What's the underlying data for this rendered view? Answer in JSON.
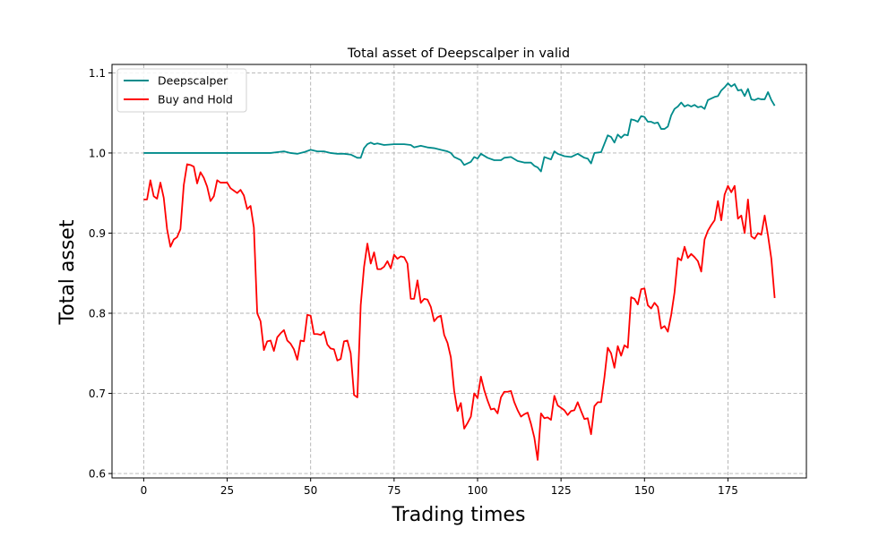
{
  "chart_data": {
    "type": "line",
    "title": "Total asset of Deepscalper in valid",
    "xlabel": "Trading times",
    "ylabel": "Total asset",
    "xlim": [
      -9.5,
      198.5
    ],
    "ylim": [
      0.5945,
      1.1105
    ],
    "xticks": [
      0,
      25,
      50,
      75,
      100,
      125,
      150,
      175
    ],
    "yticks": [
      0.6,
      0.7,
      0.8,
      0.9,
      1.0,
      1.1
    ],
    "ytick_labels": [
      "0.6",
      "0.7",
      "0.8",
      "0.9",
      "1.0",
      "1.1"
    ],
    "grid": true,
    "legend_position": "top-left",
    "series": [
      {
        "name": "Deepscalper",
        "color": "#008b8b",
        "points": [
          [
            0,
            1.0
          ],
          [
            38,
            1.0
          ],
          [
            40,
            1.001
          ],
          [
            42,
            1.002
          ],
          [
            44,
            1.0
          ],
          [
            46,
            0.999
          ],
          [
            48,
            1.001
          ],
          [
            50,
            1.004
          ],
          [
            52,
            1.002
          ],
          [
            54,
            1.002
          ],
          [
            56,
            1.0
          ],
          [
            58,
            0.999
          ],
          [
            60,
            0.999
          ],
          [
            62,
            0.998
          ],
          [
            64,
            0.994
          ],
          [
            65,
            0.994
          ],
          [
            66,
            1.006
          ],
          [
            67,
            1.011
          ],
          [
            68,
            1.013
          ],
          [
            69,
            1.011
          ],
          [
            70,
            1.012
          ],
          [
            72,
            1.01
          ],
          [
            75,
            1.011
          ],
          [
            78,
            1.011
          ],
          [
            80,
            1.01
          ],
          [
            81,
            1.007
          ],
          [
            83,
            1.009
          ],
          [
            85,
            1.007
          ],
          [
            87,
            1.006
          ],
          [
            89,
            1.004
          ],
          [
            91,
            1.002
          ],
          [
            92,
            1.0
          ],
          [
            93,
            0.995
          ],
          [
            95,
            0.991
          ],
          [
            96,
            0.985
          ],
          [
            98,
            0.989
          ],
          [
            99,
            0.995
          ],
          [
            100,
            0.993
          ],
          [
            101,
            0.999
          ],
          [
            103,
            0.994
          ],
          [
            105,
            0.991
          ],
          [
            107,
            0.991
          ],
          [
            108,
            0.994
          ],
          [
            110,
            0.995
          ],
          [
            112,
            0.99
          ],
          [
            114,
            0.988
          ],
          [
            116,
            0.988
          ],
          [
            117,
            0.984
          ],
          [
            118,
            0.982
          ],
          [
            119,
            0.977
          ],
          [
            120,
            0.995
          ],
          [
            122,
            0.992
          ],
          [
            123,
            1.002
          ],
          [
            124,
            0.999
          ],
          [
            126,
            0.996
          ],
          [
            128,
            0.995
          ],
          [
            130,
            0.999
          ],
          [
            132,
            0.994
          ],
          [
            133,
            0.993
          ],
          [
            134,
            0.987
          ],
          [
            135,
            1.0
          ],
          [
            137,
            1.001
          ],
          [
            139,
            1.022
          ],
          [
            140,
            1.02
          ],
          [
            141,
            1.013
          ],
          [
            142,
            1.023
          ],
          [
            143,
            1.019
          ],
          [
            144,
            1.023
          ],
          [
            145,
            1.022
          ],
          [
            146,
            1.042
          ],
          [
            147,
            1.041
          ],
          [
            148,
            1.039
          ],
          [
            149,
            1.046
          ],
          [
            150,
            1.045
          ],
          [
            151,
            1.039
          ],
          [
            152,
            1.039
          ],
          [
            153,
            1.037
          ],
          [
            154,
            1.038
          ],
          [
            155,
            1.03
          ],
          [
            156,
            1.03
          ],
          [
            157,
            1.033
          ],
          [
            158,
            1.047
          ],
          [
            159,
            1.055
          ],
          [
            160,
            1.058
          ],
          [
            161,
            1.063
          ],
          [
            162,
            1.058
          ],
          [
            163,
            1.06
          ],
          [
            164,
            1.058
          ],
          [
            165,
            1.06
          ],
          [
            166,
            1.057
          ],
          [
            167,
            1.058
          ],
          [
            168,
            1.055
          ],
          [
            169,
            1.066
          ],
          [
            170,
            1.068
          ],
          [
            171,
            1.07
          ],
          [
            172,
            1.071
          ],
          [
            173,
            1.078
          ],
          [
            174,
            1.082
          ],
          [
            175,
            1.087
          ],
          [
            176,
            1.083
          ],
          [
            177,
            1.086
          ],
          [
            178,
            1.078
          ],
          [
            179,
            1.079
          ],
          [
            180,
            1.071
          ],
          [
            181,
            1.08
          ],
          [
            182,
            1.067
          ],
          [
            183,
            1.066
          ],
          [
            184,
            1.068
          ],
          [
            185,
            1.067
          ],
          [
            186,
            1.067
          ],
          [
            187,
            1.076
          ],
          [
            188,
            1.066
          ],
          [
            189,
            1.059
          ]
        ]
      },
      {
        "name": "Buy and Hold",
        "color": "#ff0000",
        "points": [
          [
            0,
            0.942
          ],
          [
            1,
            0.942
          ],
          [
            2,
            0.966
          ],
          [
            3,
            0.946
          ],
          [
            4,
            0.943
          ],
          [
            5,
            0.963
          ],
          [
            6,
            0.944
          ],
          [
            7,
            0.905
          ],
          [
            8,
            0.883
          ],
          [
            9,
            0.892
          ],
          [
            10,
            0.895
          ],
          [
            11,
            0.905
          ],
          [
            12,
            0.96
          ],
          [
            13,
            0.986
          ],
          [
            14,
            0.985
          ],
          [
            15,
            0.983
          ],
          [
            16,
            0.962
          ],
          [
            17,
            0.976
          ],
          [
            18,
            0.969
          ],
          [
            19,
            0.958
          ],
          [
            20,
            0.94
          ],
          [
            21,
            0.946
          ],
          [
            22,
            0.966
          ],
          [
            23,
            0.963
          ],
          [
            25,
            0.963
          ],
          [
            26,
            0.956
          ],
          [
            27,
            0.953
          ],
          [
            28,
            0.95
          ],
          [
            29,
            0.954
          ],
          [
            30,
            0.947
          ],
          [
            31,
            0.93
          ],
          [
            32,
            0.934
          ],
          [
            33,
            0.907
          ],
          [
            34,
            0.8
          ],
          [
            35,
            0.79
          ],
          [
            36,
            0.754
          ],
          [
            37,
            0.765
          ],
          [
            38,
            0.766
          ],
          [
            39,
            0.753
          ],
          [
            40,
            0.77
          ],
          [
            41,
            0.775
          ],
          [
            42,
            0.779
          ],
          [
            43,
            0.766
          ],
          [
            44,
            0.762
          ],
          [
            45,
            0.755
          ],
          [
            46,
            0.742
          ],
          [
            47,
            0.766
          ],
          [
            48,
            0.765
          ],
          [
            49,
            0.798
          ],
          [
            50,
            0.797
          ],
          [
            51,
            0.774
          ],
          [
            52,
            0.774
          ],
          [
            53,
            0.773
          ],
          [
            54,
            0.777
          ],
          [
            55,
            0.761
          ],
          [
            56,
            0.756
          ],
          [
            57,
            0.755
          ],
          [
            58,
            0.741
          ],
          [
            59,
            0.743
          ],
          [
            60,
            0.765
          ],
          [
            61,
            0.766
          ],
          [
            62,
            0.75
          ],
          [
            63,
            0.698
          ],
          [
            64,
            0.695
          ],
          [
            65,
            0.81
          ],
          [
            66,
            0.858
          ],
          [
            67,
            0.887
          ],
          [
            68,
            0.862
          ],
          [
            69,
            0.876
          ],
          [
            70,
            0.855
          ],
          [
            71,
            0.855
          ],
          [
            72,
            0.858
          ],
          [
            73,
            0.865
          ],
          [
            74,
            0.856
          ],
          [
            75,
            0.873
          ],
          [
            76,
            0.868
          ],
          [
            77,
            0.871
          ],
          [
            78,
            0.87
          ],
          [
            79,
            0.862
          ],
          [
            80,
            0.818
          ],
          [
            81,
            0.818
          ],
          [
            82,
            0.841
          ],
          [
            83,
            0.813
          ],
          [
            84,
            0.818
          ],
          [
            85,
            0.817
          ],
          [
            86,
            0.808
          ],
          [
            87,
            0.79
          ],
          [
            88,
            0.795
          ],
          [
            89,
            0.797
          ],
          [
            90,
            0.773
          ],
          [
            91,
            0.763
          ],
          [
            92,
            0.745
          ],
          [
            93,
            0.703
          ],
          [
            94,
            0.678
          ],
          [
            95,
            0.688
          ],
          [
            96,
            0.656
          ],
          [
            97,
            0.663
          ],
          [
            98,
            0.671
          ],
          [
            99,
            0.7
          ],
          [
            100,
            0.694
          ],
          [
            101,
            0.721
          ],
          [
            102,
            0.704
          ],
          [
            103,
            0.691
          ],
          [
            104,
            0.68
          ],
          [
            105,
            0.681
          ],
          [
            106,
            0.675
          ],
          [
            107,
            0.695
          ],
          [
            108,
            0.702
          ],
          [
            109,
            0.702
          ],
          [
            110,
            0.703
          ],
          [
            111,
            0.689
          ],
          [
            112,
            0.679
          ],
          [
            113,
            0.671
          ],
          [
            114,
            0.674
          ],
          [
            115,
            0.676
          ],
          [
            116,
            0.662
          ],
          [
            117,
            0.645
          ],
          [
            118,
            0.617
          ],
          [
            119,
            0.675
          ],
          [
            120,
            0.669
          ],
          [
            121,
            0.67
          ],
          [
            122,
            0.667
          ],
          [
            123,
            0.697
          ],
          [
            124,
            0.685
          ],
          [
            125,
            0.682
          ],
          [
            126,
            0.679
          ],
          [
            127,
            0.673
          ],
          [
            128,
            0.678
          ],
          [
            129,
            0.679
          ],
          [
            130,
            0.689
          ],
          [
            131,
            0.678
          ],
          [
            132,
            0.668
          ],
          [
            133,
            0.669
          ],
          [
            134,
            0.649
          ],
          [
            135,
            0.684
          ],
          [
            136,
            0.689
          ],
          [
            137,
            0.689
          ],
          [
            138,
            0.72
          ],
          [
            139,
            0.757
          ],
          [
            140,
            0.75
          ],
          [
            141,
            0.732
          ],
          [
            142,
            0.759
          ],
          [
            143,
            0.747
          ],
          [
            144,
            0.76
          ],
          [
            145,
            0.757
          ],
          [
            146,
            0.82
          ],
          [
            147,
            0.818
          ],
          [
            148,
            0.811
          ],
          [
            149,
            0.83
          ],
          [
            150,
            0.831
          ],
          [
            151,
            0.81
          ],
          [
            152,
            0.806
          ],
          [
            153,
            0.813
          ],
          [
            154,
            0.808
          ],
          [
            155,
            0.781
          ],
          [
            156,
            0.784
          ],
          [
            157,
            0.777
          ],
          [
            158,
            0.798
          ],
          [
            159,
            0.826
          ],
          [
            160,
            0.869
          ],
          [
            161,
            0.866
          ],
          [
            162,
            0.883
          ],
          [
            163,
            0.869
          ],
          [
            164,
            0.874
          ],
          [
            165,
            0.87
          ],
          [
            166,
            0.865
          ],
          [
            167,
            0.852
          ],
          [
            168,
            0.892
          ],
          [
            169,
            0.903
          ],
          [
            170,
            0.91
          ],
          [
            171,
            0.916
          ],
          [
            172,
            0.94
          ],
          [
            173,
            0.916
          ],
          [
            174,
            0.948
          ],
          [
            175,
            0.959
          ],
          [
            176,
            0.951
          ],
          [
            177,
            0.959
          ],
          [
            178,
            0.918
          ],
          [
            179,
            0.922
          ],
          [
            180,
            0.9
          ],
          [
            181,
            0.942
          ],
          [
            182,
            0.896
          ],
          [
            183,
            0.893
          ],
          [
            184,
            0.9
          ],
          [
            185,
            0.898
          ],
          [
            186,
            0.922
          ],
          [
            187,
            0.897
          ],
          [
            188,
            0.868
          ],
          [
            189,
            0.819
          ]
        ]
      }
    ]
  }
}
